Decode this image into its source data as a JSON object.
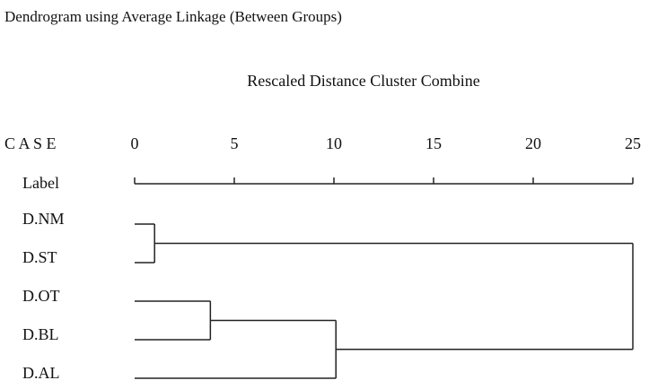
{
  "chart_data": {
    "type": "dendrogram",
    "title": "Dendrogram using Average Linkage (Between Groups)",
    "subtitle": "Rescaled Distance Cluster Combine",
    "case_heading": "C A S E",
    "label_heading": "Label",
    "leaves": [
      "D.NM",
      "D.ST",
      "D.OT",
      "D.BL",
      "D.AL"
    ],
    "merges": [
      {
        "children": [
          0,
          1
        ],
        "height": 1
      },
      {
        "children": [
          2,
          3
        ],
        "height": 3.8
      },
      {
        "children": [
          6,
          4
        ],
        "height": 10.1
      },
      {
        "children": [
          5,
          7
        ],
        "height": 25
      }
    ],
    "xlim": [
      0,
      25
    ],
    "xticks": [
      0,
      5,
      10,
      15,
      20,
      25
    ]
  }
}
